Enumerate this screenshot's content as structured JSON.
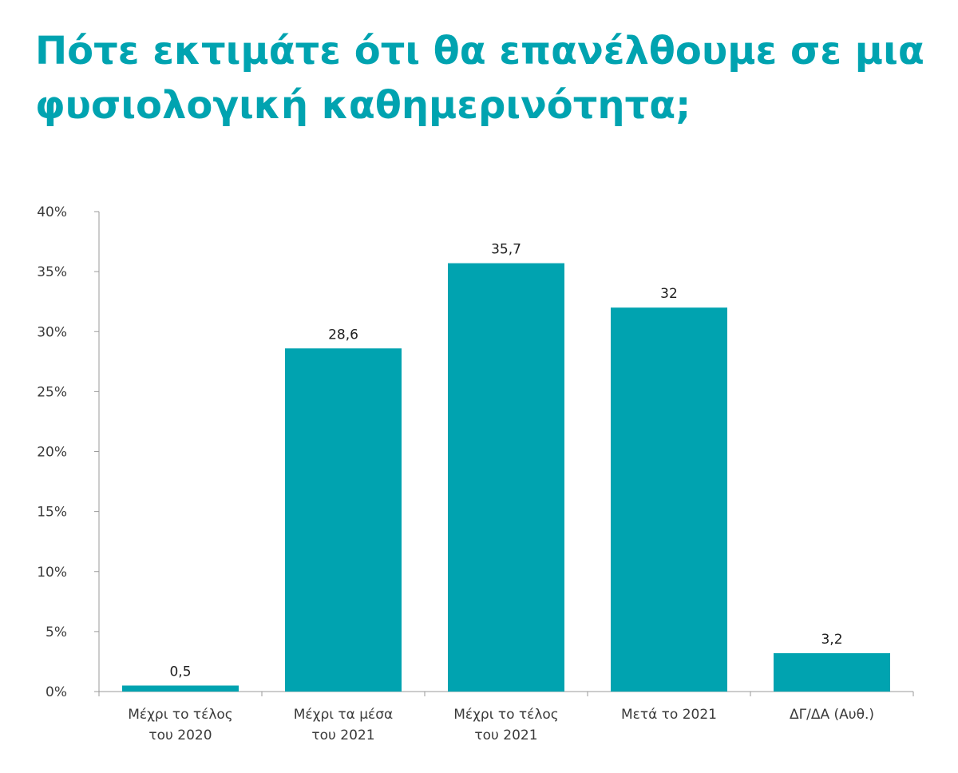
{
  "title_lines": [
    "Πότε εκτιμάτε ότι θα επανέλθουμε σε μια",
    "φυσιολογική καθημερινότητα;"
  ],
  "chart_data": {
    "type": "bar",
    "title": "Πότε εκτιμάτε ότι θα επανέλθουμε σε μια φυσιολογική καθημερινότητα;",
    "categories": [
      [
        "Μέχρι το τέλος",
        "του 2020"
      ],
      [
        "Μέχρι τα μέσα",
        "του 2021"
      ],
      [
        "Μέχρι το τέλος",
        "του 2021"
      ],
      [
        "Μετά το 2021"
      ],
      [
        "ΔΓ/ΔΑ (Αυθ.)"
      ]
    ],
    "values": [
      0.5,
      28.6,
      35.7,
      32,
      3.2
    ],
    "value_labels": [
      "0,5",
      "28,6",
      "35,7",
      "32",
      "3,2"
    ],
    "yticks": [
      "0%",
      "5%",
      "10%",
      "15%",
      "20%",
      "25%",
      "30%",
      "35%",
      "40%"
    ],
    "ylim": [
      0,
      40
    ],
    "ystep": 5,
    "grid": false,
    "legend": "none",
    "xlabel": "",
    "ylabel": "",
    "colors": {
      "bar": "#00a3b0",
      "title": "#00a3b0",
      "axis": "#9a9a9a"
    }
  }
}
